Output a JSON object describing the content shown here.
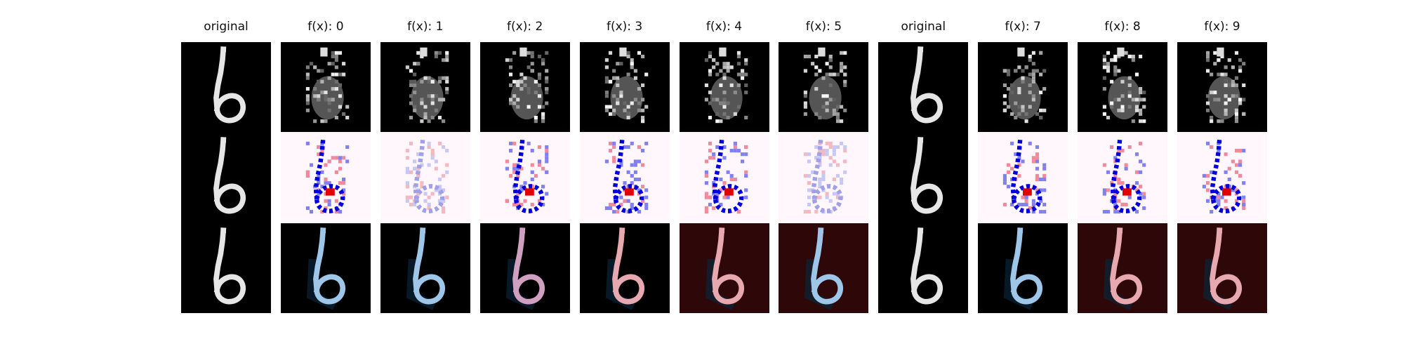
{
  "figure": {
    "columns": [
      {
        "title": "original"
      },
      {
        "title": "f(x): 0"
      },
      {
        "title": "f(x): 1"
      },
      {
        "title": "f(x): 2"
      },
      {
        "title": "f(x): 3"
      },
      {
        "title": "f(x): 4"
      },
      {
        "title": "f(x): 5"
      },
      {
        "title": "original"
      },
      {
        "title": "f(x): 7"
      },
      {
        "title": "f(x): 8"
      },
      {
        "title": "f(x): 9"
      }
    ],
    "colors": {
      "background": "#ffffff",
      "black": "#000000",
      "digit_stroke": "#e6e6e6",
      "heatmap_bg": "#fff7fb",
      "positive": "#e00000",
      "negative": "#0000dd",
      "overlay_dark_red": "#2e0808",
      "overlay_blue": "#9ec6e8",
      "overlay_pink": "#e8a8b0"
    }
  }
}
